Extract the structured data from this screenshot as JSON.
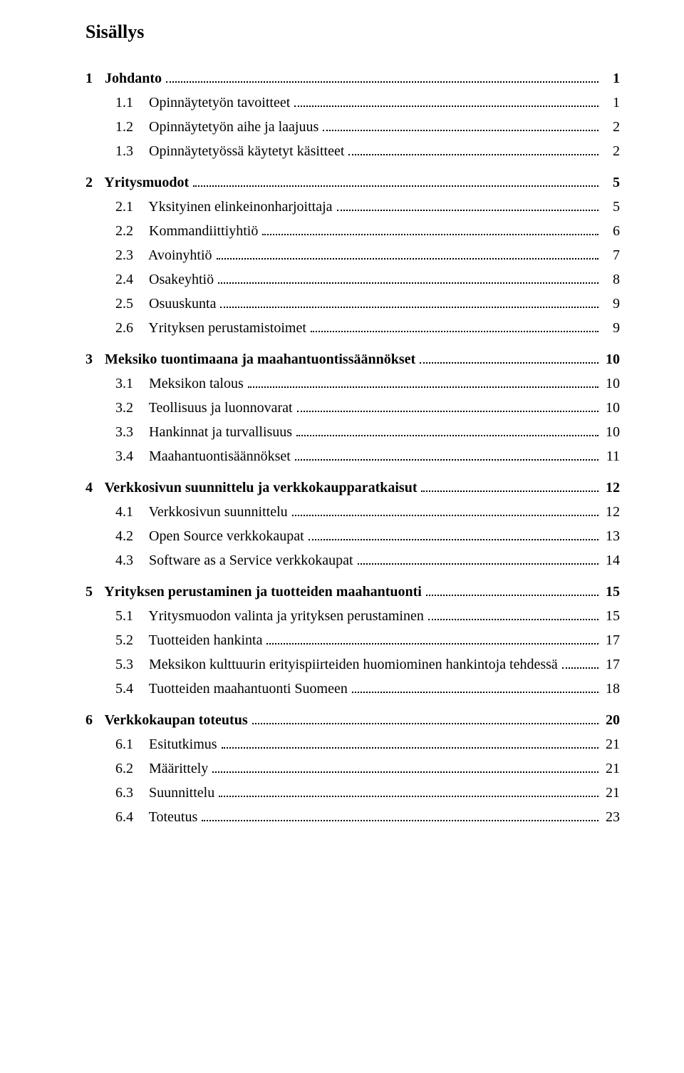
{
  "title": "Sisällys",
  "entries": [
    {
      "level": 1,
      "num": "1",
      "text": "Johdanto",
      "page": "1",
      "first": true
    },
    {
      "level": 2,
      "num": "1.1",
      "text": "Opinnäytetyön tavoitteet",
      "page": "1"
    },
    {
      "level": 2,
      "num": "1.2",
      "text": "Opinnäytetyön aihe ja laajuus",
      "page": "2"
    },
    {
      "level": 2,
      "num": "1.3",
      "text": "Opinnäytetyössä käytetyt käsitteet",
      "page": "2"
    },
    {
      "level": 1,
      "num": "2",
      "text": "Yritysmuodot",
      "page": "5"
    },
    {
      "level": 2,
      "num": "2.1",
      "text": "Yksityinen elinkeinonharjoittaja",
      "page": "5"
    },
    {
      "level": 2,
      "num": "2.2",
      "text": "Kommandiittiyhtiö",
      "page": "6"
    },
    {
      "level": 2,
      "num": "2.3",
      "text": "Avoinyhtiö",
      "page": "7"
    },
    {
      "level": 2,
      "num": "2.4",
      "text": "Osakeyhtiö",
      "page": "8"
    },
    {
      "level": 2,
      "num": "2.5",
      "text": "Osuuskunta",
      "page": "9"
    },
    {
      "level": 2,
      "num": "2.6",
      "text": "Yrityksen perustamistoimet",
      "page": "9"
    },
    {
      "level": 1,
      "num": "3",
      "text": "Meksiko tuontimaana ja maahantuontissäännökset",
      "page": "10"
    },
    {
      "level": 2,
      "num": "3.1",
      "text": "Meksikon talous",
      "page": "10"
    },
    {
      "level": 2,
      "num": "3.2",
      "text": "Teollisuus ja luonnovarat",
      "page": "10"
    },
    {
      "level": 2,
      "num": "3.3",
      "text": "Hankinnat ja turvallisuus",
      "page": "10"
    },
    {
      "level": 2,
      "num": "3.4",
      "text": "Maahantuontisäännökset",
      "page": "11"
    },
    {
      "level": 1,
      "num": "4",
      "text": "Verkkosivun suunnittelu ja verkkokaupparatkaisut",
      "page": "12"
    },
    {
      "level": 2,
      "num": "4.1",
      "text": "Verkkosivun suunnittelu",
      "page": "12"
    },
    {
      "level": 2,
      "num": "4.2",
      "text": "Open Source verkkokaupat",
      "page": "13"
    },
    {
      "level": 2,
      "num": "4.3",
      "text": "Software as a Service verkkokaupat",
      "page": "14"
    },
    {
      "level": 1,
      "num": "5",
      "text": "Yrityksen perustaminen ja tuotteiden maahantuonti",
      "page": "15"
    },
    {
      "level": 2,
      "num": "5.1",
      "text": "Yritysmuodon valinta ja yrityksen perustaminen",
      "page": "15"
    },
    {
      "level": 2,
      "num": "5.2",
      "text": "Tuotteiden hankinta",
      "page": "17"
    },
    {
      "level": 2,
      "num": "5.3",
      "text": "Meksikon kulttuurin erityispiirteiden huomiominen hankintoja tehdessä",
      "page": "17"
    },
    {
      "level": 2,
      "num": "5.4",
      "text": "Tuotteiden maahantuonti Suomeen",
      "page": "18"
    },
    {
      "level": 1,
      "num": "6",
      "text": "Verkkokaupan toteutus",
      "page": "20"
    },
    {
      "level": 2,
      "num": "6.1",
      "text": "Esitutkimus",
      "page": "21"
    },
    {
      "level": 2,
      "num": "6.2",
      "text": "Määrittely",
      "page": "21"
    },
    {
      "level": 2,
      "num": "6.3",
      "text": "Suunnittelu",
      "page": "21"
    },
    {
      "level": 2,
      "num": "6.4",
      "text": "Toteutus",
      "page": "23"
    }
  ]
}
